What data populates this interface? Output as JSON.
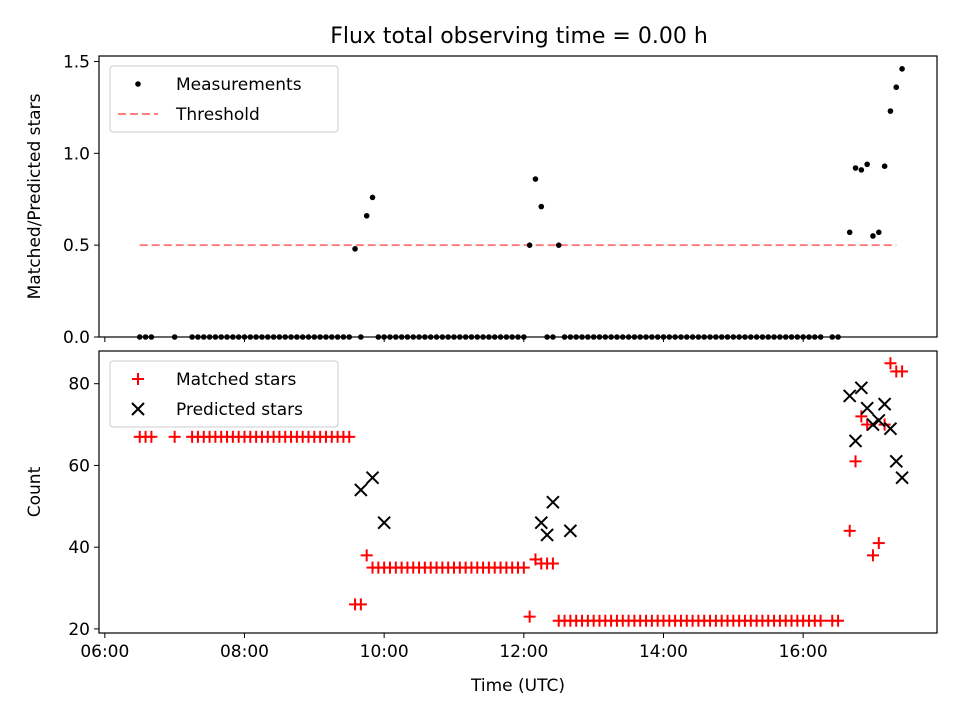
{
  "chart_data": [
    {
      "type": "scatter",
      "title": "Flux total observing time = 0.00 h",
      "xlabel": "",
      "ylabel": "Matched/Predicted stars",
      "ylim": [
        0,
        1.53
      ],
      "yticks": [
        0.0,
        0.5,
        1.0,
        1.5
      ],
      "ytick_labels": [
        "0.0",
        "0.5",
        "1.0",
        "1.5"
      ],
      "legend": {
        "placement": "top-left",
        "entries": [
          "Measurements",
          "Threshold"
        ]
      },
      "colors": {
        "measurements": "#000000",
        "threshold": "#ff7f7f"
      },
      "threshold": {
        "y": 0.5,
        "x_start": "06:30",
        "x_end": "17:20"
      },
      "series": [
        {
          "name": "Measurements",
          "x": [
            "06:30",
            "06:35",
            "06:40",
            "07:00",
            "07:15",
            "07:20",
            "07:25",
            "07:30",
            "07:35",
            "07:40",
            "07:45",
            "07:50",
            "07:55",
            "08:00",
            "08:05",
            "08:10",
            "08:15",
            "08:20",
            "08:25",
            "08:30",
            "08:35",
            "08:40",
            "08:45",
            "08:50",
            "08:55",
            "09:00",
            "09:05",
            "09:10",
            "09:15",
            "09:20",
            "09:25",
            "09:30",
            "09:35",
            "09:40",
            "09:45",
            "09:50",
            "09:55",
            "10:00",
            "10:05",
            "10:10",
            "10:15",
            "10:20",
            "10:25",
            "10:30",
            "10:35",
            "10:40",
            "10:45",
            "10:50",
            "10:55",
            "11:00",
            "11:05",
            "11:10",
            "11:15",
            "11:20",
            "11:25",
            "11:30",
            "11:35",
            "11:40",
            "11:45",
            "11:50",
            "11:55",
            "12:00",
            "12:05",
            "12:10",
            "12:15",
            "12:20",
            "12:25",
            "12:30",
            "12:35",
            "12:40",
            "12:45",
            "12:50",
            "12:55",
            "13:00",
            "13:05",
            "13:10",
            "13:15",
            "13:20",
            "13:25",
            "13:30",
            "13:35",
            "13:40",
            "13:45",
            "13:50",
            "13:55",
            "14:00",
            "14:05",
            "14:10",
            "14:15",
            "14:20",
            "14:25",
            "14:30",
            "14:35",
            "14:40",
            "14:45",
            "14:50",
            "14:55",
            "15:00",
            "15:05",
            "15:10",
            "15:15",
            "15:20",
            "15:25",
            "15:30",
            "15:35",
            "15:40",
            "15:45",
            "15:50",
            "15:55",
            "16:00",
            "16:05",
            "16:10",
            "16:15",
            "16:25",
            "16:30",
            "16:40",
            "16:45",
            "16:50",
            "16:55",
            "17:00",
            "17:05",
            "17:10",
            "17:15",
            "17:20",
            "17:25"
          ],
          "y": [
            0,
            0,
            0,
            0,
            0,
            0,
            0,
            0,
            0,
            0,
            0,
            0,
            0,
            0,
            0,
            0,
            0,
            0,
            0,
            0,
            0,
            0,
            0,
            0,
            0,
            0,
            0,
            0,
            0,
            0,
            0,
            0,
            0.48,
            0,
            0.66,
            0.76,
            0,
            0,
            0,
            0,
            0,
            0,
            0,
            0,
            0,
            0,
            0,
            0,
            0,
            0,
            0,
            0,
            0,
            0,
            0,
            0,
            0,
            0,
            0,
            0,
            0,
            0,
            0.5,
            0.86,
            0.71,
            0,
            0,
            0.5,
            0,
            0,
            0,
            0,
            0,
            0,
            0,
            0,
            0,
            0,
            0,
            0,
            0,
            0,
            0,
            0,
            0,
            0,
            0,
            0,
            0,
            0,
            0,
            0,
            0,
            0,
            0,
            0,
            0,
            0,
            0,
            0,
            0,
            0,
            0,
            0,
            0,
            0,
            0,
            0,
            0,
            0,
            0,
            0,
            0,
            0,
            0,
            0.57,
            0.92,
            0.91,
            0.94,
            0.55,
            0.57,
            0.93,
            1.23,
            1.36,
            1.46
          ]
        }
      ]
    },
    {
      "type": "scatter",
      "title": "",
      "xlabel": "Time (UTC)",
      "ylabel": "Count",
      "ylim": [
        19,
        88
      ],
      "yticks": [
        20,
        40,
        60,
        80
      ],
      "ytick_labels": [
        "20",
        "40",
        "60",
        "80"
      ],
      "xlim": [
        "05:55",
        "17:55"
      ],
      "xticks": [
        "06:00",
        "08:00",
        "10:00",
        "12:00",
        "14:00",
        "16:00"
      ],
      "xtick_labels": [
        "06:00",
        "08:00",
        "10:00",
        "12:00",
        "14:00",
        "16:00"
      ],
      "legend": {
        "placement": "top-left",
        "entries": [
          "Matched stars",
          "Predicted stars"
        ]
      },
      "colors": {
        "matched": "#ff0000",
        "predicted": "#000000"
      },
      "series": [
        {
          "name": "Matched stars",
          "x": [
            "06:30",
            "06:35",
            "06:40",
            "07:00",
            "07:15",
            "07:20",
            "07:25",
            "07:30",
            "07:35",
            "07:40",
            "07:45",
            "07:50",
            "07:55",
            "08:00",
            "08:05",
            "08:10",
            "08:15",
            "08:20",
            "08:25",
            "08:30",
            "08:35",
            "08:40",
            "08:45",
            "08:50",
            "08:55",
            "09:00",
            "09:05",
            "09:10",
            "09:15",
            "09:20",
            "09:25",
            "09:30",
            "09:35",
            "09:40",
            "09:45",
            "09:50",
            "09:55",
            "10:00",
            "10:05",
            "10:10",
            "10:15",
            "10:20",
            "10:25",
            "10:30",
            "10:35",
            "10:40",
            "10:45",
            "10:50",
            "10:55",
            "11:00",
            "11:05",
            "11:10",
            "11:15",
            "11:20",
            "11:25",
            "11:30",
            "11:35",
            "11:40",
            "11:45",
            "11:50",
            "11:55",
            "12:00",
            "12:05",
            "12:10",
            "12:15",
            "12:20",
            "12:25",
            "12:30",
            "12:35",
            "12:40",
            "12:45",
            "12:50",
            "12:55",
            "13:00",
            "13:05",
            "13:10",
            "13:15",
            "13:20",
            "13:25",
            "13:30",
            "13:35",
            "13:40",
            "13:45",
            "13:50",
            "13:55",
            "14:00",
            "14:05",
            "14:10",
            "14:15",
            "14:20",
            "14:25",
            "14:30",
            "14:35",
            "14:40",
            "14:45",
            "14:50",
            "14:55",
            "15:00",
            "15:05",
            "15:10",
            "15:15",
            "15:20",
            "15:25",
            "15:30",
            "15:35",
            "15:40",
            "15:45",
            "15:50",
            "15:55",
            "16:00",
            "16:05",
            "16:10",
            "16:15",
            "16:25",
            "16:30",
            "16:40",
            "16:45",
            "16:50",
            "16:55",
            "17:00",
            "17:05",
            "17:10",
            "17:15",
            "17:20",
            "17:25"
          ],
          "y": [
            67,
            67,
            67,
            67,
            67,
            67,
            67,
            67,
            67,
            67,
            67,
            67,
            67,
            67,
            67,
            67,
            67,
            67,
            67,
            67,
            67,
            67,
            67,
            67,
            67,
            67,
            67,
            67,
            67,
            67,
            67,
            67,
            26,
            26,
            38,
            35,
            35,
            35,
            35,
            35,
            35,
            35,
            35,
            35,
            35,
            35,
            35,
            35,
            35,
            35,
            35,
            35,
            35,
            35,
            35,
            35,
            35,
            35,
            35,
            35,
            35,
            35,
            23,
            37,
            36,
            36,
            36,
            22,
            22,
            22,
            22,
            22,
            22,
            22,
            22,
            22,
            22,
            22,
            22,
            22,
            22,
            22,
            22,
            22,
            22,
            22,
            22,
            22,
            22,
            22,
            22,
            22,
            22,
            22,
            22,
            22,
            22,
            22,
            22,
            22,
            22,
            22,
            22,
            22,
            22,
            22,
            22,
            22,
            22,
            22,
            22,
            22,
            22,
            22,
            22,
            44,
            61,
            72,
            70,
            38,
            41,
            70,
            85,
            83,
            83
          ]
        },
        {
          "name": "Predicted stars",
          "x": [
            "09:40",
            "09:50",
            "10:00",
            "12:15",
            "12:20",
            "12:25",
            "12:40",
            "16:40",
            "16:45",
            "16:50",
            "16:55",
            "17:00",
            "17:05",
            "17:10",
            "17:15",
            "17:20",
            "17:25"
          ],
          "y": [
            54,
            57,
            46,
            46,
            43,
            51,
            44,
            77,
            66,
            79,
            74,
            70,
            71,
            75,
            69,
            61,
            57
          ]
        }
      ]
    }
  ]
}
